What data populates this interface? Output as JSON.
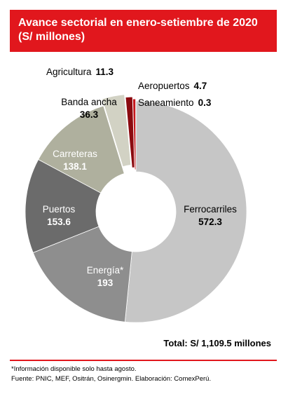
{
  "header": {
    "title_line1": "Avance sectorial en enero-setiembre de 2020",
    "title_line2": "(S/ millones)"
  },
  "chart_data": {
    "type": "pie",
    "style": "donut",
    "title": "Avance sectorial en enero-setiembre de 2020 (S/ millones)",
    "slices": [
      {
        "name": "Ferrocarriles",
        "value": 572.3,
        "color": "#c6c6c6",
        "label_color": "#000000"
      },
      {
        "name": "Energía*",
        "value": 193,
        "color": "#8e8e8e",
        "label_color": "#ffffff"
      },
      {
        "name": "Puertos",
        "value": 153.6,
        "color": "#6b6b6b",
        "label_color": "#ffffff"
      },
      {
        "name": "Carreteras",
        "value": 138.1,
        "color": "#afb09e",
        "label_color": "#ffffff"
      },
      {
        "name": "Banda ancha",
        "value": 36.3,
        "color": "#d2d2c4",
        "label_color": "#000000"
      },
      {
        "name": "Agricultura",
        "value": 11.3,
        "color": "#8b0a0f",
        "label_color": "#000000"
      },
      {
        "name": "Aeropuertos",
        "value": 4.7,
        "color": "#c4161c",
        "label_color": "#000000"
      },
      {
        "name": "Saneamiento",
        "value": 0.3,
        "color": "#e94c4c",
        "label_color": "#000000"
      }
    ],
    "total_label": "Total: S/ 1,109.5 millones"
  },
  "footer": {
    "note": "*Información disponible solo hasta agosto.",
    "source": "Fuente: PNIC, MEF, Ositrán, Osinergmin. Elaboración: ComexPerú."
  }
}
